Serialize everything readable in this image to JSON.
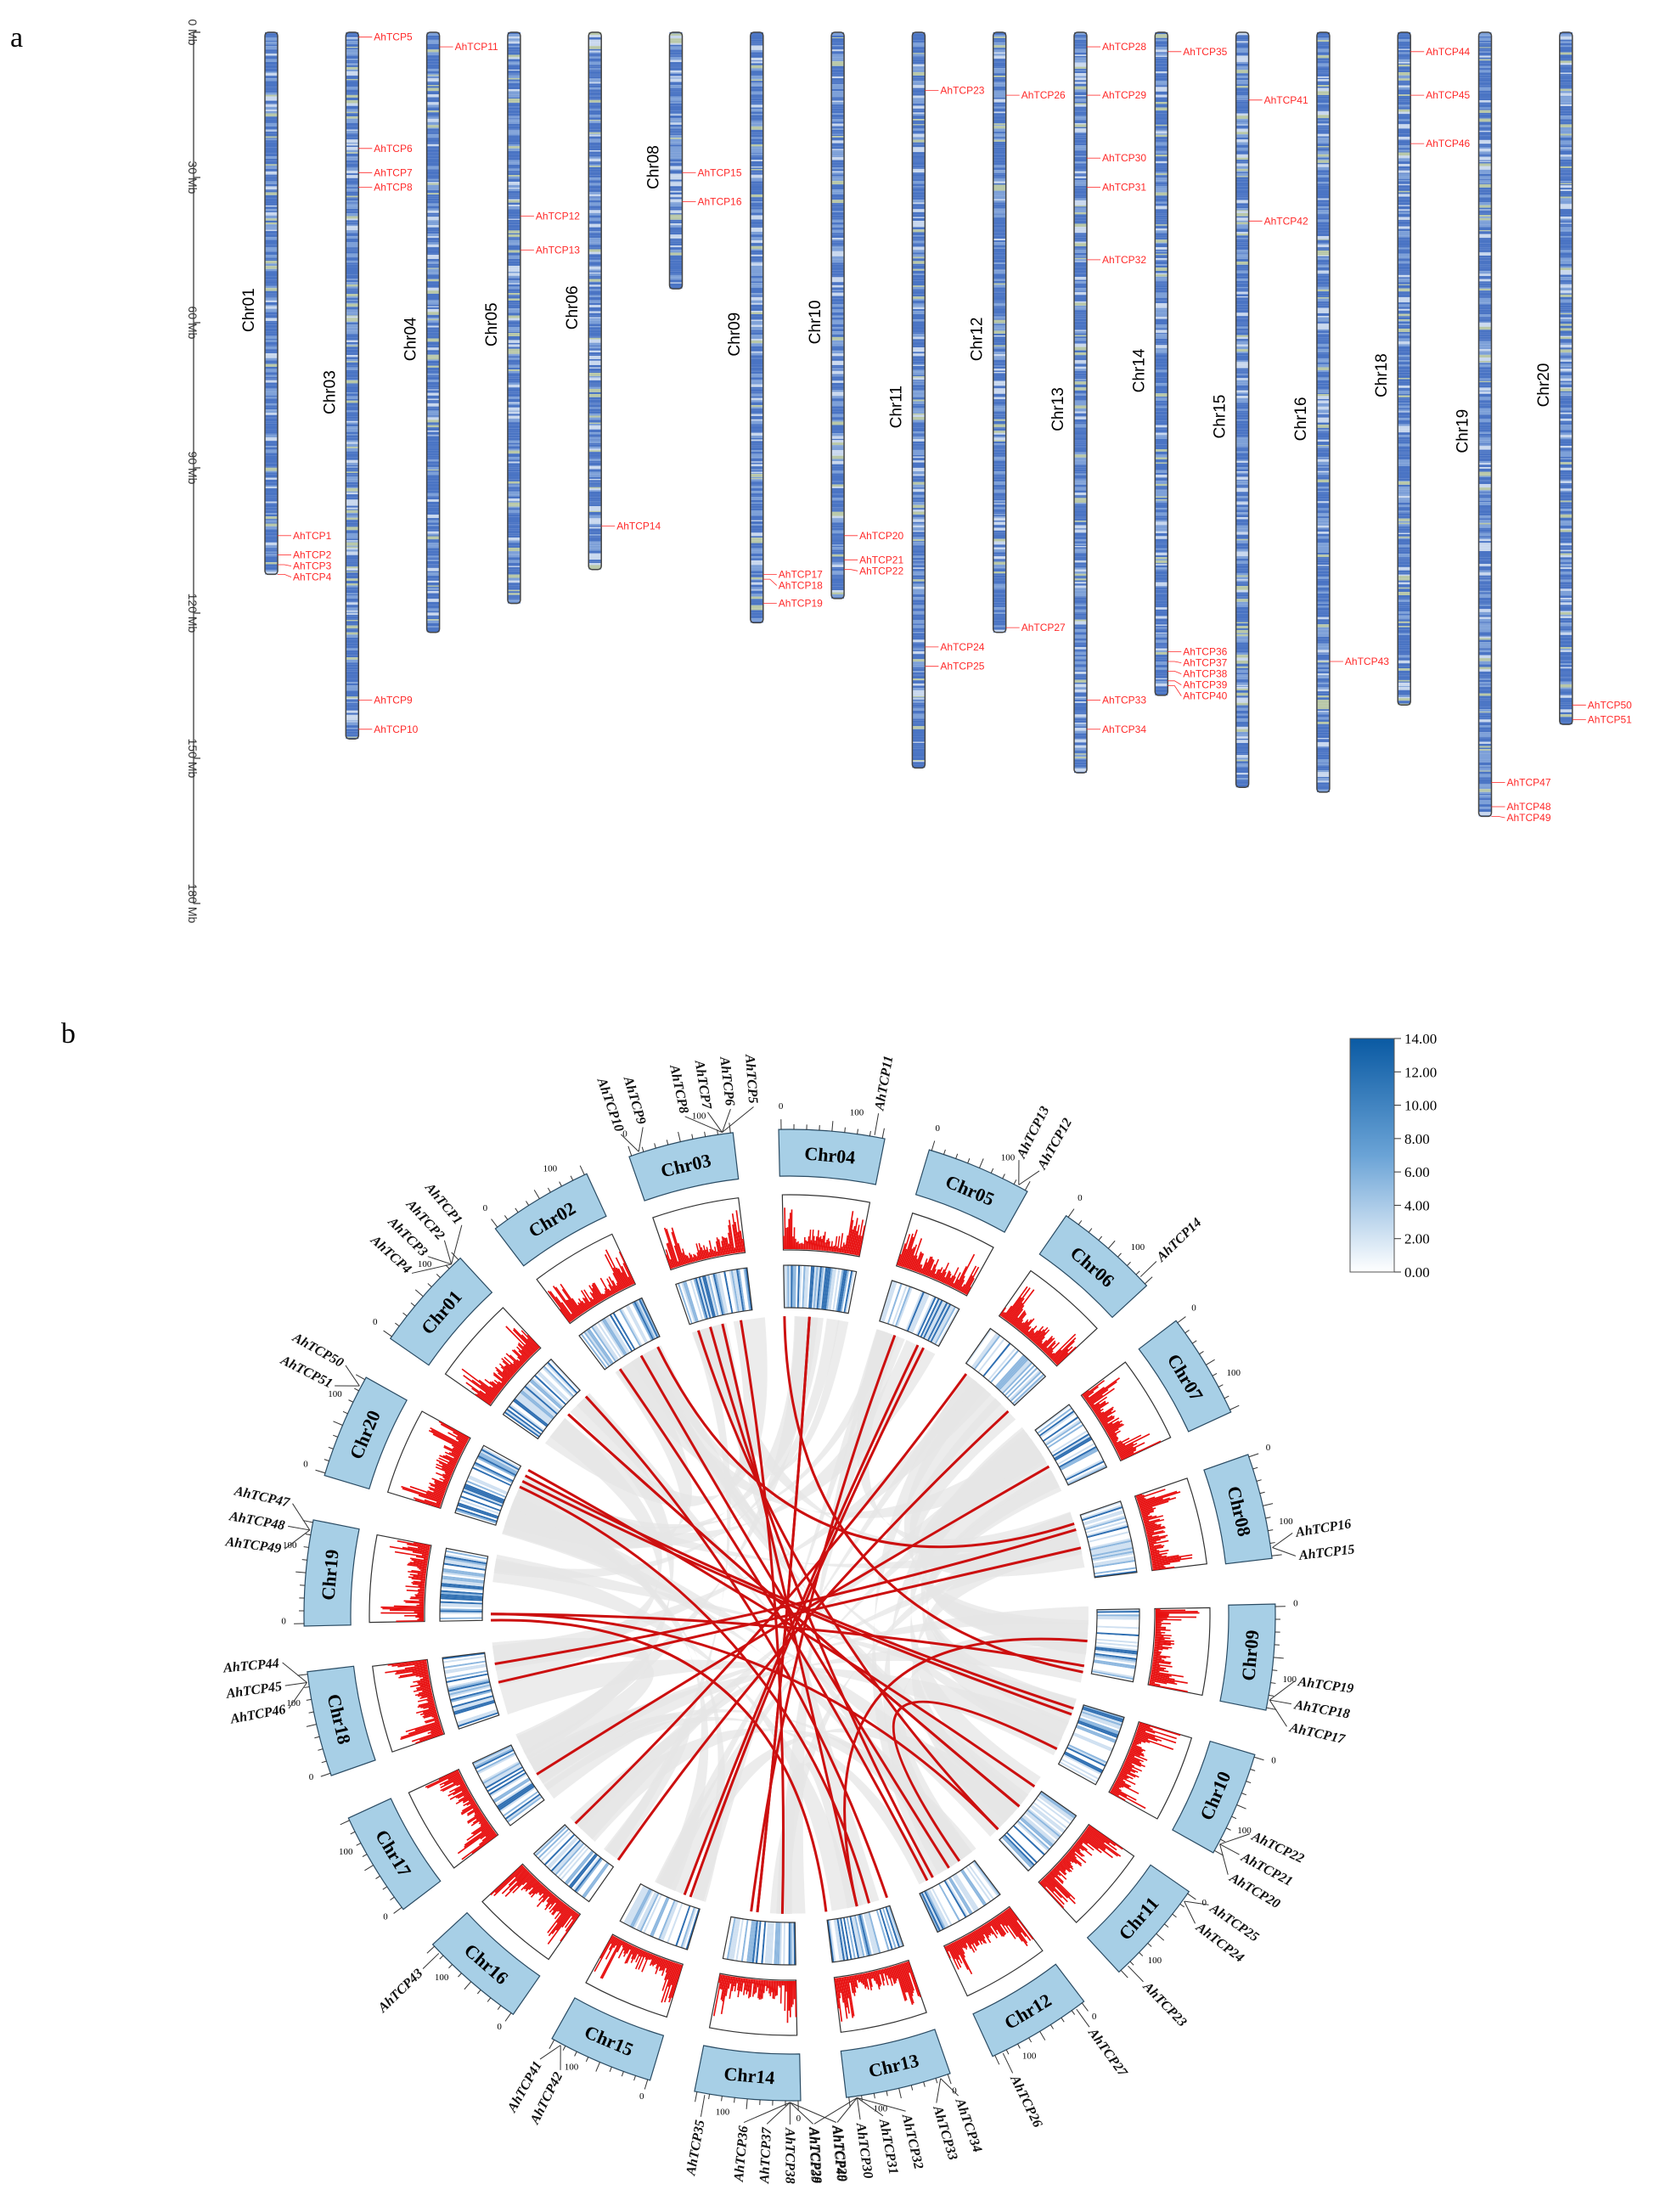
{
  "panel_a": {
    "label": "a",
    "axis_ticks": [
      "0 Mb",
      "30 Mb",
      "60 Mb",
      "90 Mb",
      "120 Mb",
      "150 Mb",
      "180 Mb"
    ],
    "axis_values": [
      0,
      30,
      60,
      90,
      120,
      150,
      180
    ],
    "chromosomes": [
      {
        "name": "Chr01",
        "length": 112,
        "genes": [
          [
            "AhTCP1",
            104
          ],
          [
            "AhTCP2",
            108
          ],
          [
            "AhTCP3",
            110
          ],
          [
            "AhTCP4",
            112
          ]
        ]
      },
      {
        "name": "Chr03",
        "length": 146,
        "genes": [
          [
            "AhTCP5",
            1
          ],
          [
            "AhTCP6",
            24
          ],
          [
            "AhTCP7",
            29
          ],
          [
            "AhTCP8",
            32
          ],
          [
            "AhTCP9",
            138
          ],
          [
            "AhTCP10",
            144
          ]
        ]
      },
      {
        "name": "Chr04",
        "length": 124,
        "genes": [
          [
            "AhTCP11",
            3
          ]
        ]
      },
      {
        "name": "Chr05",
        "length": 118,
        "genes": [
          [
            "AhTCP12",
            38
          ],
          [
            "AhTCP13",
            45
          ]
        ]
      },
      {
        "name": "Chr06",
        "length": 111,
        "genes": [
          [
            "AhTCP14",
            102
          ]
        ]
      },
      {
        "name": "Chr08",
        "length": 53,
        "genes": [
          [
            "AhTCP15",
            29
          ],
          [
            "AhTCP16",
            35
          ]
        ]
      },
      {
        "name": "Chr09",
        "length": 122,
        "genes": [
          [
            "AhTCP17",
            112
          ],
          [
            "AhTCP18",
            113
          ],
          [
            "AhTCP19",
            118
          ]
        ]
      },
      {
        "name": "Chr10",
        "length": 117,
        "genes": [
          [
            "AhTCP20",
            104
          ],
          [
            "AhTCP21",
            109
          ],
          [
            "AhTCP22",
            111
          ]
        ]
      },
      {
        "name": "Chr11",
        "length": 152,
        "genes": [
          [
            "AhTCP23",
            12
          ],
          [
            "AhTCP24",
            127
          ],
          [
            "AhTCP25",
            131
          ]
        ]
      },
      {
        "name": "Chr12",
        "length": 124,
        "genes": [
          [
            "AhTCP26",
            13
          ],
          [
            "AhTCP27",
            123
          ]
        ]
      },
      {
        "name": "Chr13",
        "length": 153,
        "genes": [
          [
            "AhTCP28",
            3
          ],
          [
            "AhTCP29",
            13
          ],
          [
            "AhTCP30",
            26
          ],
          [
            "AhTCP31",
            32
          ],
          [
            "AhTCP32",
            47
          ],
          [
            "AhTCP33",
            138
          ],
          [
            "AhTCP34",
            144
          ]
        ]
      },
      {
        "name": "Chr14",
        "length": 137,
        "genes": [
          [
            "AhTCP35",
            4
          ],
          [
            "AhTCP36",
            128
          ],
          [
            "AhTCP37",
            130
          ],
          [
            "AhTCP38",
            132
          ],
          [
            "AhTCP39",
            134
          ],
          [
            "AhTCP40",
            135
          ]
        ]
      },
      {
        "name": "Chr15",
        "length": 156,
        "genes": [
          [
            "AhTCP41",
            14
          ],
          [
            "AhTCP42",
            39
          ]
        ]
      },
      {
        "name": "Chr16",
        "length": 157,
        "genes": [
          [
            "AhTCP43",
            130
          ]
        ]
      },
      {
        "name": "Chr18",
        "length": 139,
        "genes": [
          [
            "AhTCP44",
            4
          ],
          [
            "AhTCP45",
            13
          ],
          [
            "AhTCP46",
            23
          ]
        ]
      },
      {
        "name": "Chr19",
        "length": 162,
        "genes": [
          [
            "AhTCP47",
            155
          ],
          [
            "AhTCP48",
            160
          ],
          [
            "AhTCP49",
            162
          ]
        ]
      },
      {
        "name": "Chr20",
        "length": 143,
        "genes": [
          [
            "AhTCP50",
            139
          ],
          [
            "AhTCP51",
            142
          ]
        ]
      }
    ]
  },
  "panel_b": {
    "label": "b",
    "tick_100": "100",
    "tick_0": "0",
    "chromosomes": [
      "Chr01",
      "Chr02",
      "Chr03",
      "Chr04",
      "Chr05",
      "Chr06",
      "Chr07",
      "Chr08",
      "Chr09",
      "Chr10",
      "Chr11",
      "Chr12",
      "Chr13",
      "Chr14",
      "Chr15",
      "Chr16",
      "Chr17",
      "Chr18",
      "Chr19",
      "Chr20"
    ],
    "gene_groups": [
      {
        "chr": "Chr01",
        "genes": [
          "AhTCP1",
          "AhTCP2",
          "AhTCP3",
          "AhTCP4"
        ]
      },
      {
        "chr": "Chr03",
        "genes": [
          "AhTCP5",
          "AhTCP6",
          "AhTCP7",
          "AhTCP8"
        ]
      },
      {
        "chr": "Chr03",
        "genes": [
          "AhTCP9",
          "AhTCP10"
        ]
      },
      {
        "chr": "Chr04",
        "genes": [
          "AhTCP11"
        ]
      },
      {
        "chr": "Chr05",
        "genes": [
          "AhTCP12",
          "AhTCP13"
        ]
      },
      {
        "chr": "Chr06",
        "genes": [
          "AhTCP14"
        ]
      },
      {
        "chr": "Chr08",
        "genes": [
          "AhTCP15",
          "AhTCP16"
        ]
      },
      {
        "chr": "Chr09",
        "genes": [
          "AhTCP17",
          "AhTCP18",
          "AhTCP19"
        ]
      },
      {
        "chr": "Chr10",
        "genes": [
          "AhTCP20",
          "AhTCP21",
          "AhTCP22"
        ]
      },
      {
        "chr": "Chr11",
        "genes": [
          "AhTCP23"
        ]
      },
      {
        "chr": "Chr11",
        "genes": [
          "AhTCP24",
          "AhTCP25"
        ]
      },
      {
        "chr": "Chr12",
        "genes": [
          "AhTCP26"
        ]
      },
      {
        "chr": "Chr12",
        "genes": [
          "AhTCP27"
        ]
      },
      {
        "chr": "Chr13",
        "genes": [
          "AhTCP28",
          "AhTCP29",
          "AhTCP30",
          "AhTCP31",
          "AhTCP32"
        ]
      },
      {
        "chr": "Chr13",
        "genes": [
          "AhTCP33",
          "AhTCP34"
        ]
      },
      {
        "chr": "Chr14",
        "genes": [
          "AhTCP35"
        ]
      },
      {
        "chr": "Chr14",
        "genes": [
          "AhTCP36",
          "AhTCP37",
          "AhTCP38",
          "AhTCP39",
          "AhTCP40"
        ]
      },
      {
        "chr": "Chr15",
        "genes": [
          "AhTCP41",
          "AhTCP42"
        ]
      },
      {
        "chr": "Chr16",
        "genes": [
          "AhTCP43"
        ]
      },
      {
        "chr": "Chr18",
        "genes": [
          "AhTCP44",
          "AhTCP45",
          "AhTCP46"
        ]
      },
      {
        "chr": "Chr19",
        "genes": [
          "AhTCP47",
          "AhTCP48",
          "AhTCP49"
        ]
      },
      {
        "chr": "Chr20",
        "genes": [
          "AhTCP50",
          "AhTCP51"
        ]
      }
    ],
    "links": [
      [
        "Chr01",
        "Chr13"
      ],
      [
        "Chr01",
        "Chr11"
      ],
      [
        "Chr02",
        "Chr12"
      ],
      [
        "Chr02",
        "Chr08"
      ],
      [
        "Chr03",
        "Chr13"
      ],
      [
        "Chr03",
        "Chr11"
      ],
      [
        "Chr03",
        "Chr14"
      ],
      [
        "Chr04",
        "Chr14"
      ],
      [
        "Chr04",
        "Chr09"
      ],
      [
        "Chr05",
        "Chr15"
      ],
      [
        "Chr05",
        "Chr14"
      ],
      [
        "Chr06",
        "Chr16"
      ],
      [
        "Chr07",
        "Chr17"
      ],
      [
        "Chr08",
        "Chr18"
      ],
      [
        "Chr09",
        "Chr19"
      ],
      [
        "Chr09",
        "Chr13"
      ],
      [
        "Chr10",
        "Chr20"
      ],
      [
        "Chr10",
        "Chr12"
      ],
      [
        "Chr11",
        "Chr01"
      ],
      [
        "Chr11",
        "Chr20"
      ],
      [
        "Chr12",
        "Chr03"
      ],
      [
        "Chr13",
        "Chr20"
      ],
      [
        "Chr13",
        "Chr19"
      ],
      [
        "Chr14",
        "Chr04"
      ],
      [
        "Chr15",
        "Chr05"
      ],
      [
        "Chr16",
        "Chr06"
      ],
      [
        "Chr18",
        "Chr08"
      ],
      [
        "Chr19",
        "Chr11"
      ],
      [
        "Chr20",
        "Chr10"
      ],
      [
        "Chr12",
        "Chr02"
      ]
    ],
    "legend": {
      "ticks": [
        "14.00",
        "12.00",
        "10.00",
        "8.00",
        "6.00",
        "4.00",
        "2.00",
        "0.00"
      ],
      "min_color": "#ffffff",
      "max_color": "#0a5aa3"
    }
  }
}
